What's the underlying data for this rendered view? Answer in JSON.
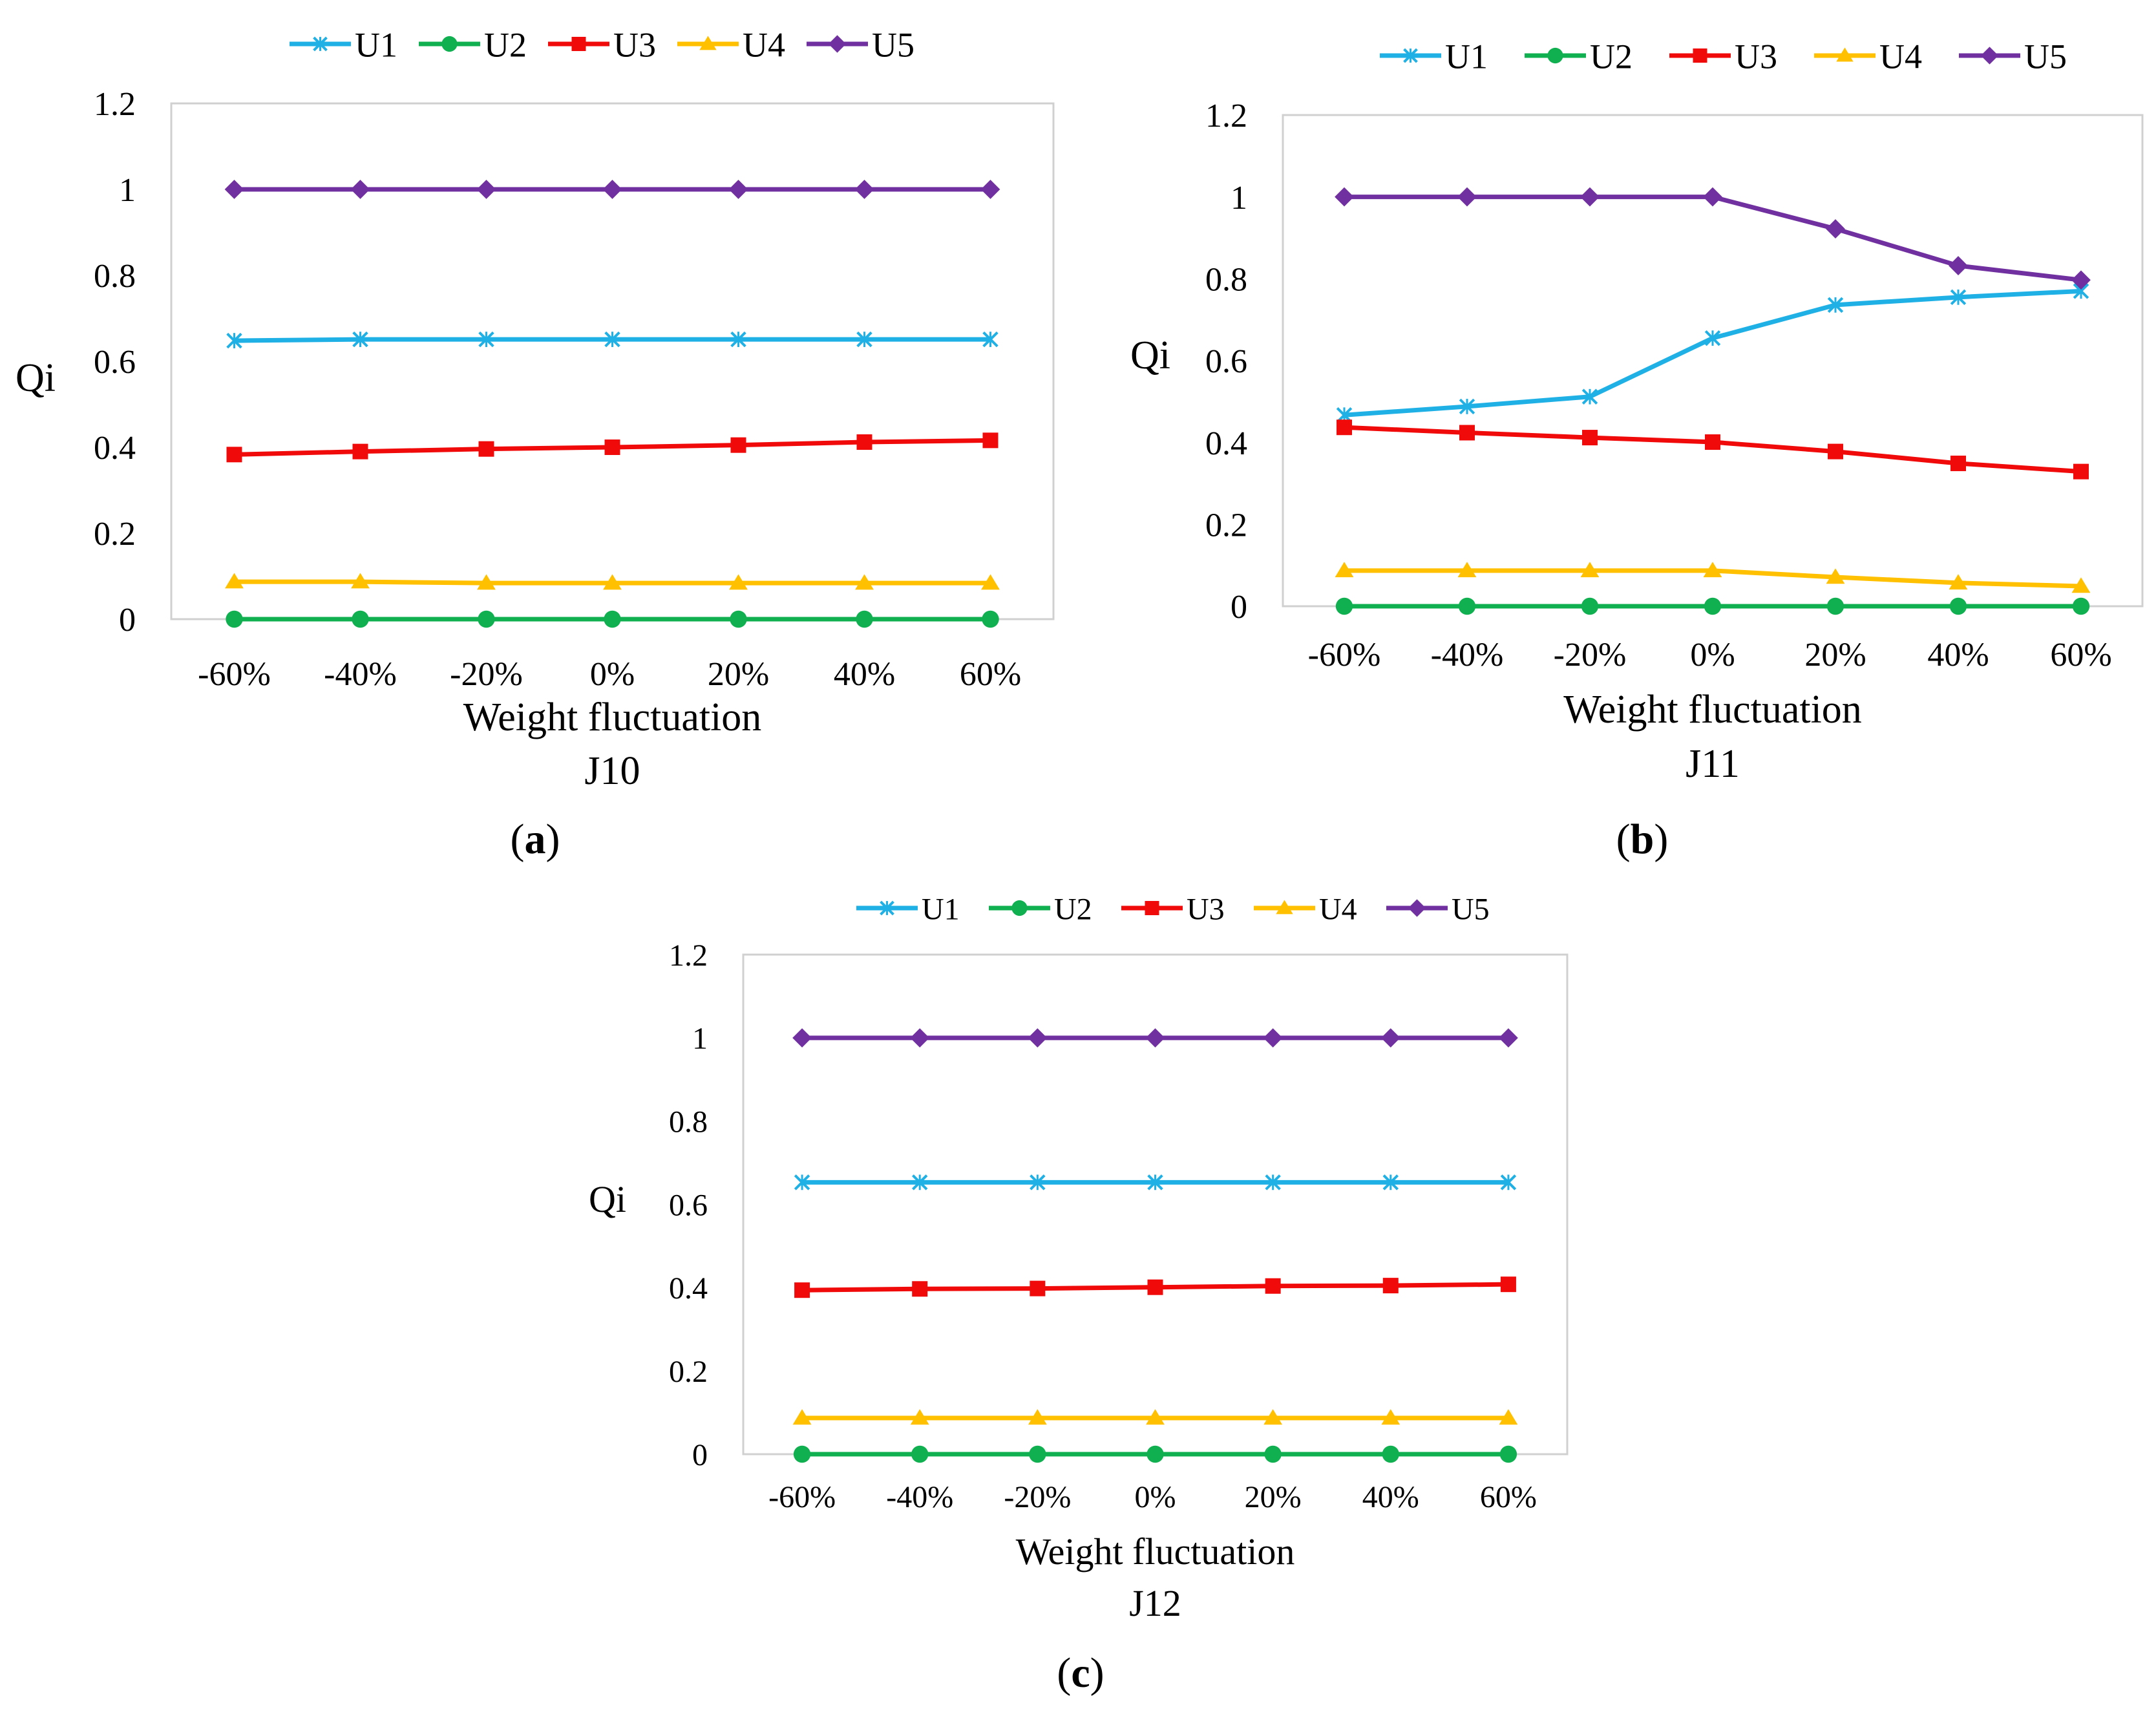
{
  "figure": {
    "panel_labels": [
      "a",
      "b",
      "c"
    ]
  },
  "colors": {
    "U1": "#1FB1E6",
    "U2": "#10B050",
    "U3": "#F00A0A",
    "U4": "#FFC000",
    "U5": "#7030A0",
    "plot_border": "#D0D0D0",
    "text": "#000000"
  },
  "chart_data": [
    {
      "type": "line",
      "subtitle": "J10",
      "xlabel": "Weight fluctuation",
      "ylabel": "Qi",
      "ylim": [
        0,
        1.2
      ],
      "yticks": [
        "0",
        "0.2",
        "0.4",
        "0.6",
        "0.8",
        "1",
        "1.2"
      ],
      "grid": false,
      "legend_position": "top",
      "categories": [
        "-60%",
        "-40%",
        "-20%",
        "0%",
        "20%",
        "40%",
        "60%"
      ],
      "series": [
        {
          "name": "U1",
          "marker": "x",
          "values": [
            0.648,
            0.651,
            0.651,
            0.651,
            0.651,
            0.651,
            0.651
          ]
        },
        {
          "name": "U2",
          "marker": "circle",
          "values": [
            0,
            0,
            0,
            0,
            0,
            0,
            0
          ]
        },
        {
          "name": "U3",
          "marker": "square",
          "values": [
            0.383,
            0.39,
            0.396,
            0.4,
            0.405,
            0.412,
            0.416
          ]
        },
        {
          "name": "U4",
          "marker": "triangle",
          "values": [
            0.087,
            0.087,
            0.084,
            0.084,
            0.084,
            0.084,
            0.084
          ]
        },
        {
          "name": "U5",
          "marker": "diamond",
          "values": [
            1,
            1,
            1,
            1,
            1,
            1,
            1
          ]
        }
      ]
    },
    {
      "type": "line",
      "subtitle": "J11",
      "xlabel": "Weight fluctuation",
      "ylabel": "Qi",
      "ylim": [
        0,
        1.2
      ],
      "yticks": [
        "0",
        "0.2",
        "0.4",
        "0.6",
        "0.8",
        "1",
        "1.2"
      ],
      "grid": false,
      "legend_position": "top",
      "categories": [
        "-60%",
        "-40%",
        "-20%",
        "0%",
        "20%",
        "40%",
        "60%"
      ],
      "series": [
        {
          "name": "U1",
          "marker": "x",
          "values": [
            0.467,
            0.488,
            0.512,
            0.655,
            0.736,
            0.755,
            0.77
          ]
        },
        {
          "name": "U2",
          "marker": "circle",
          "values": [
            0,
            0,
            0,
            0,
            0,
            0,
            0
          ]
        },
        {
          "name": "U3",
          "marker": "square",
          "values": [
            0.437,
            0.424,
            0.412,
            0.401,
            0.378,
            0.349,
            0.329
          ]
        },
        {
          "name": "U4",
          "marker": "triangle",
          "values": [
            0.087,
            0.087,
            0.087,
            0.087,
            0.071,
            0.057,
            0.049
          ]
        },
        {
          "name": "U5",
          "marker": "diamond",
          "values": [
            1,
            1,
            1,
            1,
            0.922,
            0.832,
            0.797
          ]
        }
      ]
    },
    {
      "type": "line",
      "subtitle": "J12",
      "xlabel": "Weight fluctuation",
      "ylabel": "Qi",
      "ylim": [
        0,
        1.2
      ],
      "yticks": [
        "0",
        "0.2",
        "0.4",
        "0.6",
        "0.8",
        "1",
        "1.2"
      ],
      "grid": false,
      "legend_position": "top",
      "categories": [
        "-60%",
        "-40%",
        "-20%",
        "0%",
        "20%",
        "40%",
        "60%"
      ],
      "series": [
        {
          "name": "U1",
          "marker": "x",
          "values": [
            0.653,
            0.653,
            0.653,
            0.653,
            0.653,
            0.653,
            0.653
          ]
        },
        {
          "name": "U2",
          "marker": "circle",
          "values": [
            0,
            0,
            0,
            0,
            0,
            0,
            0
          ]
        },
        {
          "name": "U3",
          "marker": "square",
          "values": [
            0.394,
            0.397,
            0.398,
            0.401,
            0.404,
            0.405,
            0.408
          ]
        },
        {
          "name": "U4",
          "marker": "triangle",
          "values": [
            0.087,
            0.087,
            0.087,
            0.087,
            0.087,
            0.087,
            0.087
          ]
        },
        {
          "name": "U5",
          "marker": "diamond",
          "values": [
            1,
            1,
            1,
            1,
            1,
            1,
            1
          ]
        }
      ]
    }
  ]
}
